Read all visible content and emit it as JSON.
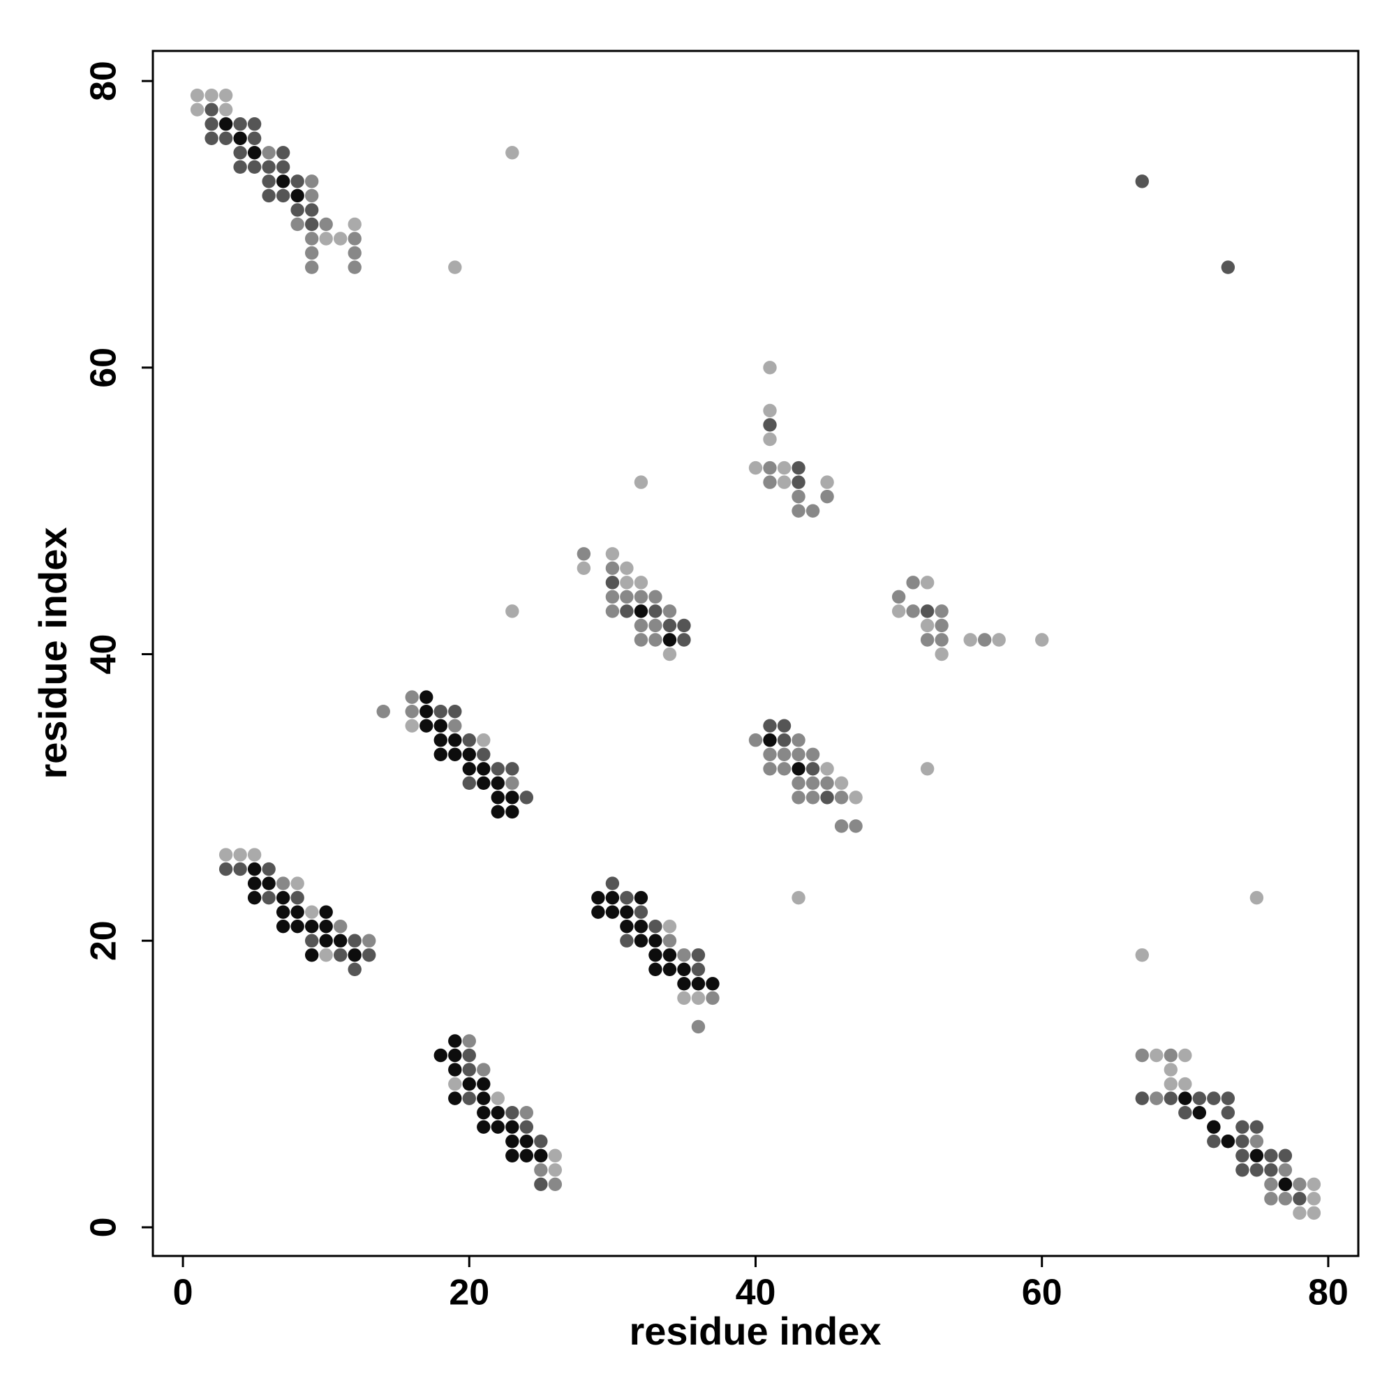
{
  "chart_data": {
    "type": "scatter",
    "x_label": "residue index",
    "y_label": "residue index",
    "xlim": [
      -2.1,
      82.1
    ],
    "ylim": [
      -2,
      82.1
    ],
    "xticks": [
      0,
      20,
      40,
      60,
      80
    ],
    "yticks": [
      0,
      20,
      40,
      60,
      80
    ],
    "series": [
      {
        "color": "#aaaaaa",
        "x": [
          1,
          2,
          3,
          1,
          3,
          12,
          10,
          11,
          23,
          19,
          41,
          41,
          41,
          40,
          42,
          42,
          45,
          32,
          28,
          30,
          31,
          31,
          32,
          34,
          23,
          52,
          50,
          52,
          55,
          57,
          60,
          53,
          16,
          21,
          45,
          46,
          47,
          52,
          3,
          4,
          5,
          8,
          9,
          10,
          34,
          35,
          36,
          43,
          67,
          75,
          19,
          22,
          26,
          26,
          68,
          70,
          69,
          69,
          70,
          79,
          79,
          78,
          79
        ],
        "values": [
          79,
          79,
          79,
          78,
          78,
          70,
          69,
          69,
          75,
          67,
          60,
          57,
          55,
          53,
          53,
          52,
          52,
          52,
          46,
          47,
          46,
          45,
          45,
          40,
          43,
          45,
          43,
          42,
          41,
          41,
          41,
          40,
          35,
          34,
          32,
          31,
          30,
          32,
          26,
          26,
          26,
          24,
          22,
          19,
          21,
          16,
          16,
          23,
          19,
          23,
          10,
          9,
          5,
          4,
          12,
          12,
          11,
          10,
          10,
          3,
          2,
          1,
          1
        ]
      },
      {
        "color": "#888888",
        "x": [
          6,
          9,
          9,
          8,
          10,
          9,
          12,
          9,
          12,
          9,
          12,
          41,
          41,
          43,
          45,
          43,
          44,
          28,
          30,
          30,
          31,
          32,
          33,
          30,
          34,
          32,
          33,
          32,
          33,
          51,
          50,
          51,
          53,
          53,
          52,
          53,
          56,
          14,
          16,
          16,
          19,
          23,
          40,
          43,
          41,
          42,
          43,
          44,
          41,
          42,
          43,
          44,
          45,
          43,
          44,
          46,
          46,
          47,
          7,
          11,
          13,
          34,
          35,
          37,
          36,
          20,
          21,
          24,
          25,
          26,
          67,
          69,
          68,
          75,
          77,
          76,
          78,
          76,
          77
        ],
        "values": [
          75,
          73,
          72,
          70,
          70,
          69,
          69,
          68,
          68,
          67,
          67,
          53,
          52,
          51,
          51,
          50,
          50,
          47,
          46,
          44,
          44,
          44,
          44,
          43,
          43,
          42,
          42,
          41,
          41,
          45,
          44,
          43,
          43,
          42,
          41,
          41,
          41,
          36,
          37,
          36,
          35,
          31,
          34,
          34,
          33,
          33,
          33,
          33,
          32,
          32,
          31,
          31,
          31,
          30,
          30,
          30,
          28,
          28,
          24,
          21,
          20,
          20,
          19,
          16,
          14,
          13,
          11,
          8,
          4,
          3,
          12,
          12,
          9,
          6,
          4,
          3,
          3,
          2,
          2
        ]
      },
      {
        "color": "#555555",
        "x": [
          2,
          2,
          4,
          5,
          2,
          3,
          5,
          4,
          7,
          4,
          5,
          6,
          7,
          6,
          8,
          6,
          7,
          8,
          9,
          9,
          67,
          73,
          41,
          43,
          43,
          30,
          31,
          33,
          34,
          35,
          35,
          52,
          18,
          19,
          20,
          21,
          22,
          23,
          20,
          24,
          41,
          42,
          42,
          44,
          45,
          3,
          4,
          6,
          6,
          8,
          9,
          12,
          11,
          13,
          12,
          30,
          31,
          32,
          33,
          31,
          36,
          36,
          20,
          20,
          20,
          23,
          24,
          25,
          25,
          67,
          69,
          71,
          72,
          73,
          70,
          73,
          72,
          74,
          75,
          72,
          73,
          74,
          74,
          76,
          77,
          74,
          75,
          76,
          77,
          78
        ],
        "values": [
          78,
          77,
          77,
          77,
          76,
          76,
          76,
          75,
          75,
          74,
          74,
          74,
          74,
          73,
          73,
          72,
          72,
          71,
          71,
          70,
          73,
          67,
          56,
          53,
          52,
          45,
          43,
          43,
          42,
          42,
          41,
          43,
          36,
          36,
          34,
          33,
          32,
          32,
          31,
          30,
          35,
          35,
          34,
          32,
          30,
          25,
          25,
          25,
          23,
          23,
          20,
          20,
          19,
          19,
          18,
          24,
          23,
          22,
          21,
          20,
          19,
          18,
          12,
          11,
          9,
          8,
          7,
          6,
          3,
          9,
          9,
          9,
          9,
          9,
          8,
          8,
          7,
          7,
          7,
          6,
          6,
          6,
          5,
          5,
          5,
          4,
          4,
          4,
          3,
          2
        ]
      },
      {
        "color": "#0d0d0d",
        "x": [
          3,
          4,
          5,
          7,
          8,
          32,
          34,
          17,
          17,
          17,
          18,
          18,
          19,
          18,
          19,
          20,
          20,
          21,
          21,
          22,
          22,
          23,
          22,
          23,
          41,
          43,
          5,
          5,
          6,
          5,
          7,
          7,
          8,
          10,
          7,
          8,
          9,
          10,
          10,
          11,
          9,
          12,
          29,
          30,
          32,
          29,
          30,
          31,
          31,
          32,
          32,
          33,
          33,
          34,
          33,
          34,
          35,
          35,
          36,
          37,
          19,
          18,
          19,
          19,
          20,
          21,
          19,
          21,
          21,
          22,
          21,
          22,
          23,
          23,
          24,
          23,
          24,
          25,
          70,
          71,
          72,
          73,
          75,
          77
        ],
        "values": [
          77,
          76,
          75,
          73,
          72,
          43,
          41,
          37,
          36,
          35,
          35,
          34,
          34,
          33,
          33,
          33,
          32,
          32,
          31,
          31,
          30,
          30,
          29,
          29,
          34,
          32,
          25,
          24,
          24,
          23,
          23,
          22,
          22,
          22,
          21,
          21,
          21,
          21,
          20,
          20,
          19,
          19,
          23,
          23,
          23,
          22,
          22,
          22,
          21,
          21,
          20,
          20,
          19,
          19,
          18,
          18,
          18,
          17,
          17,
          17,
          13,
          12,
          12,
          11,
          10,
          10,
          9,
          9,
          8,
          8,
          7,
          7,
          7,
          6,
          6,
          5,
          5,
          5,
          9,
          8,
          7,
          6,
          5,
          3
        ]
      }
    ]
  }
}
